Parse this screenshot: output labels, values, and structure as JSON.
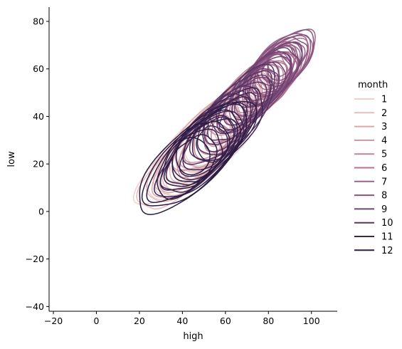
{
  "chart_data": {
    "type": "kde-contour",
    "xlabel": "high",
    "ylabel": "low",
    "xlim": [
      -22,
      112
    ],
    "ylim": [
      -42,
      86
    ],
    "x_ticks": [
      -20,
      0,
      20,
      40,
      60,
      80,
      100
    ],
    "y_ticks": [
      -40,
      -20,
      0,
      20,
      40,
      60,
      80
    ],
    "x_tick_labels": [
      "−20",
      "0",
      "20",
      "40",
      "60",
      "80",
      "100"
    ],
    "y_tick_labels": [
      "−40",
      "−20",
      "0",
      "20",
      "40",
      "60",
      "80"
    ],
    "legend": {
      "title": "month",
      "placement": "right"
    },
    "series": [
      {
        "name": "1",
        "color": "#efd0cf",
        "center": [
          50,
          28
        ],
        "rx": 38,
        "ry": 12,
        "angle": 40,
        "levels": 7
      },
      {
        "name": "2",
        "color": "#e8bcbd",
        "center": [
          48,
          26
        ],
        "rx": 36,
        "ry": 11,
        "angle": 42,
        "levels": 7
      },
      {
        "name": "3",
        "color": "#dba6ac",
        "center": [
          53,
          31
        ],
        "rx": 36,
        "ry": 11,
        "angle": 44,
        "levels": 7
      },
      {
        "name": "4",
        "color": "#cf95a5",
        "center": [
          60,
          38
        ],
        "rx": 32,
        "ry": 10,
        "angle": 45,
        "levels": 7
      },
      {
        "name": "5",
        "color": "#c1849d",
        "center": [
          70,
          47
        ],
        "rx": 28,
        "ry": 9,
        "angle": 45,
        "levels": 8
      },
      {
        "name": "6",
        "color": "#b07492",
        "center": [
          80,
          55
        ],
        "rx": 24,
        "ry": 9,
        "angle": 44,
        "levels": 8
      },
      {
        "name": "7",
        "color": "#9e6489",
        "center": [
          85,
          61
        ],
        "rx": 21,
        "ry": 9,
        "angle": 42,
        "levels": 8
      },
      {
        "name": "8",
        "color": "#8a5380",
        "center": [
          84,
          60
        ],
        "rx": 22,
        "ry": 9,
        "angle": 42,
        "levels": 8
      },
      {
        "name": "9",
        "color": "#6f4472",
        "center": [
          76,
          52
        ],
        "rx": 26,
        "ry": 9,
        "angle": 44,
        "levels": 8
      },
      {
        "name": "10",
        "color": "#563564",
        "center": [
          63,
          40
        ],
        "rx": 28,
        "ry": 10,
        "angle": 44,
        "levels": 8
      },
      {
        "name": "11",
        "color": "#3d2653",
        "center": [
          53,
          29
        ],
        "rx": 32,
        "ry": 11,
        "angle": 42,
        "levels": 8
      },
      {
        "name": "12",
        "color": "#2c1c44",
        "center": [
          46,
          23
        ],
        "rx": 34,
        "ry": 12,
        "angle": 40,
        "levels": 8
      }
    ]
  }
}
